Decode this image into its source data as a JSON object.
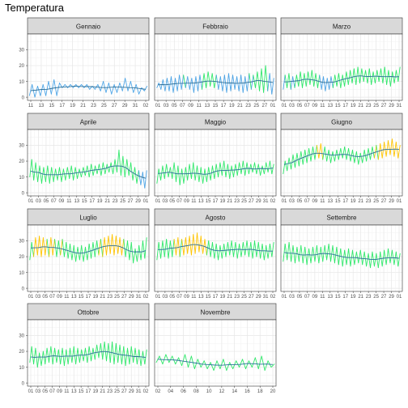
{
  "chart_data": {
    "type": "line",
    "title": "Temperatura",
    "xlabel": "",
    "ylabel": "",
    "ylim": [
      -2,
      40
    ],
    "yticks": [
      0,
      10,
      20,
      30
    ],
    "grid": true,
    "colors": {
      "line": "#3a86d4",
      "cold": "#4ea5e6",
      "mild": "#2fe86a",
      "warm": "#ffc400",
      "hot": "#e08a10",
      "smooth": "#2b6f99"
    },
    "panels": [
      {
        "month": "Gennaio",
        "xticks": [
          "11",
          "13",
          "15",
          "17",
          "19",
          "21",
          "23",
          "25",
          "27",
          "29",
          "31",
          "02"
        ],
        "days": [
          11,
          12,
          13,
          14,
          15,
          16,
          17,
          18,
          19,
          20,
          21,
          22,
          23,
          24,
          25,
          26,
          27,
          28,
          29,
          30,
          31,
          32
        ],
        "min": [
          1,
          0,
          1,
          1,
          2,
          1,
          6,
          6,
          6,
          6,
          6,
          5,
          5,
          4,
          3,
          2,
          3,
          4,
          4,
          3,
          2,
          4
        ],
        "max": [
          8,
          7,
          8,
          10,
          11,
          9,
          8,
          8,
          8,
          8,
          8,
          7,
          8,
          10,
          9,
          8,
          9,
          12,
          10,
          8,
          6,
          7
        ]
      },
      {
        "month": "Febbraio",
        "xticks": [
          "01",
          "03",
          "05",
          "07",
          "09",
          "11",
          "13",
          "15",
          "17",
          "19",
          "21",
          "23",
          "25",
          "27",
          "01"
        ],
        "days": [
          1,
          2,
          3,
          4,
          5,
          6,
          7,
          8,
          9,
          10,
          11,
          12,
          13,
          14,
          15,
          16,
          17,
          18,
          19,
          20,
          21,
          22,
          23,
          24,
          25,
          26,
          27,
          28,
          29
        ],
        "min": [
          6,
          5,
          4,
          4,
          3,
          4,
          5,
          6,
          5,
          3,
          4,
          5,
          6,
          7,
          6,
          5,
          4,
          3,
          4,
          5,
          4,
          3,
          4,
          5,
          6,
          4,
          3,
          4,
          2
        ],
        "max": [
          9,
          11,
          12,
          13,
          12,
          14,
          14,
          13,
          12,
          13,
          14,
          15,
          16,
          15,
          14,
          13,
          14,
          15,
          14,
          13,
          14,
          13,
          15,
          14,
          16,
          18,
          20,
          15,
          12
        ]
      },
      {
        "month": "Marzo",
        "xticks": [
          "01",
          "03",
          "05",
          "07",
          "09",
          "11",
          "13",
          "15",
          "17",
          "19",
          "21",
          "23",
          "25",
          "27",
          "29",
          "31"
        ],
        "days": [
          1,
          2,
          3,
          4,
          5,
          6,
          7,
          8,
          9,
          10,
          11,
          12,
          13,
          14,
          15,
          16,
          17,
          18,
          19,
          20,
          21,
          22,
          23,
          24,
          25,
          26,
          27,
          28,
          29,
          30,
          31
        ],
        "min": [
          5,
          6,
          5,
          6,
          7,
          6,
          7,
          8,
          7,
          6,
          5,
          4,
          5,
          6,
          7,
          6,
          7,
          8,
          9,
          8,
          9,
          10,
          9,
          8,
          9,
          10,
          9,
          8,
          7,
          9,
          10
        ],
        "max": [
          14,
          15,
          13,
          14,
          16,
          15,
          16,
          17,
          15,
          14,
          13,
          12,
          13,
          14,
          15,
          14,
          16,
          17,
          18,
          19,
          18,
          17,
          18,
          16,
          17,
          18,
          19,
          17,
          16,
          17,
          19
        ]
      },
      {
        "month": "Aprile",
        "xticks": [
          "01",
          "03",
          "05",
          "07",
          "09",
          "11",
          "13",
          "15",
          "17",
          "19",
          "21",
          "23",
          "25",
          "27",
          "29",
          "01"
        ],
        "days": [
          1,
          2,
          3,
          4,
          5,
          6,
          7,
          8,
          9,
          10,
          11,
          12,
          13,
          14,
          15,
          16,
          17,
          18,
          19,
          20,
          21,
          22,
          23,
          24,
          25,
          26,
          27,
          28,
          29,
          30
        ],
        "min": [
          10,
          8,
          7,
          6,
          7,
          6,
          7,
          8,
          7,
          8,
          9,
          8,
          9,
          10,
          11,
          10,
          11,
          12,
          11,
          12,
          13,
          12,
          13,
          11,
          10,
          11,
          8,
          6,
          5,
          3
        ],
        "max": [
          21,
          19,
          17,
          16,
          17,
          16,
          15,
          16,
          15,
          16,
          17,
          16,
          15,
          16,
          17,
          18,
          17,
          18,
          19,
          18,
          19,
          21,
          27,
          23,
          21,
          19,
          16,
          14,
          13,
          14
        ]
      },
      {
        "month": "Maggio",
        "xticks": [
          "01",
          "03",
          "05",
          "07",
          "09",
          "11",
          "13",
          "15",
          "17",
          "19",
          "21",
          "23",
          "25",
          "27",
          "29",
          "31",
          "02"
        ],
        "days": [
          1,
          2,
          3,
          4,
          5,
          6,
          7,
          8,
          9,
          10,
          11,
          12,
          13,
          14,
          15,
          16,
          17,
          18,
          19,
          20,
          21,
          22,
          23,
          24,
          25,
          26,
          27,
          28,
          29,
          30,
          31
        ],
        "min": [
          6,
          8,
          9,
          10,
          9,
          7,
          5,
          6,
          8,
          9,
          8,
          7,
          6,
          7,
          8,
          9,
          10,
          11,
          10,
          9,
          10,
          11,
          12,
          11,
          12,
          13,
          12,
          11,
          12,
          13,
          12
        ],
        "max": [
          15,
          17,
          18,
          16,
          19,
          17,
          15,
          16,
          18,
          19,
          17,
          16,
          15,
          16,
          17,
          18,
          19,
          20,
          18,
          17,
          18,
          19,
          20,
          19,
          18,
          19,
          18,
          17,
          19,
          20,
          18
        ]
      },
      {
        "month": "Giugno",
        "xticks": [
          "01",
          "03",
          "05",
          "07",
          "09",
          "11",
          "13",
          "15",
          "17",
          "19",
          "21",
          "23",
          "25",
          "27",
          "29",
          "01"
        ],
        "days": [
          1,
          2,
          3,
          4,
          5,
          6,
          7,
          8,
          9,
          10,
          11,
          12,
          13,
          14,
          15,
          16,
          17,
          18,
          19,
          20,
          21,
          22,
          23,
          24,
          25,
          26,
          27,
          28,
          29,
          30
        ],
        "min": [
          12,
          14,
          15,
          16,
          17,
          18,
          19,
          20,
          21,
          22,
          21,
          20,
          19,
          20,
          21,
          22,
          21,
          20,
          19,
          18,
          19,
          20,
          21,
          22,
          21,
          22,
          23,
          24,
          23,
          22
        ],
        "max": [
          20,
          22,
          24,
          25,
          26,
          27,
          28,
          29,
          30,
          31,
          29,
          27,
          26,
          27,
          28,
          29,
          28,
          27,
          26,
          25,
          27,
          28,
          29,
          30,
          31,
          32,
          33,
          34,
          32,
          30
        ]
      },
      {
        "month": "Luglio",
        "xticks": [
          "01",
          "03",
          "05",
          "07",
          "09",
          "11",
          "13",
          "15",
          "17",
          "19",
          "21",
          "23",
          "25",
          "27",
          "29",
          "31",
          "02"
        ],
        "days": [
          1,
          2,
          3,
          4,
          5,
          6,
          7,
          8,
          9,
          10,
          11,
          12,
          13,
          14,
          15,
          16,
          17,
          18,
          19,
          20,
          21,
          22,
          23,
          24,
          25,
          26,
          27,
          28,
          29,
          30,
          31
        ],
        "min": [
          18,
          20,
          21,
          20,
          21,
          20,
          21,
          20,
          21,
          20,
          19,
          18,
          17,
          18,
          17,
          18,
          19,
          20,
          21,
          20,
          21,
          22,
          21,
          22,
          21,
          20,
          18,
          16,
          17,
          18,
          19
        ],
        "max": [
          29,
          32,
          33,
          32,
          31,
          32,
          31,
          30,
          31,
          29,
          28,
          27,
          26,
          27,
          26,
          28,
          29,
          30,
          31,
          32,
          33,
          34,
          33,
          32,
          31,
          30,
          29,
          25,
          27,
          30,
          32
        ]
      },
      {
        "month": "Agosto",
        "xticks": [
          "01",
          "03",
          "05",
          "07",
          "09",
          "11",
          "13",
          "15",
          "17",
          "19",
          "21",
          "23",
          "25",
          "27",
          "29",
          "31",
          "02"
        ],
        "days": [
          1,
          2,
          3,
          4,
          5,
          6,
          7,
          8,
          9,
          10,
          11,
          12,
          13,
          14,
          15,
          16,
          17,
          18,
          19,
          20,
          21,
          22,
          23,
          24,
          25,
          26,
          27,
          28,
          29,
          30,
          31
        ],
        "min": [
          18,
          19,
          20,
          19,
          20,
          21,
          20,
          21,
          22,
          21,
          22,
          23,
          22,
          21,
          20,
          19,
          18,
          19,
          20,
          21,
          20,
          19,
          20,
          21,
          20,
          19,
          20,
          19,
          18,
          19,
          20
        ],
        "max": [
          29,
          30,
          31,
          30,
          31,
          32,
          31,
          32,
          33,
          34,
          35,
          33,
          31,
          30,
          29,
          28,
          27,
          28,
          29,
          30,
          29,
          28,
          29,
          30,
          29,
          30,
          29,
          28,
          27,
          28,
          29
        ]
      },
      {
        "month": "Settembre",
        "xticks": [
          "01",
          "03",
          "05",
          "07",
          "09",
          "11",
          "13",
          "15",
          "17",
          "19",
          "21",
          "23",
          "25",
          "27",
          "29",
          "01"
        ],
        "days": [
          1,
          2,
          3,
          4,
          5,
          6,
          7,
          8,
          9,
          10,
          11,
          12,
          13,
          14,
          15,
          16,
          17,
          18,
          19,
          20,
          21,
          22,
          23,
          24,
          25,
          26,
          27,
          28,
          29,
          30
        ],
        "min": [
          17,
          18,
          17,
          16,
          17,
          16,
          15,
          16,
          17,
          16,
          17,
          18,
          17,
          16,
          15,
          14,
          15,
          14,
          15,
          16,
          15,
          14,
          13,
          14,
          13,
          14,
          15,
          16,
          15,
          14
        ],
        "max": [
          28,
          29,
          27,
          26,
          27,
          26,
          25,
          26,
          27,
          26,
          27,
          28,
          27,
          26,
          25,
          24,
          25,
          24,
          23,
          24,
          23,
          22,
          23,
          22,
          23,
          24,
          25,
          24,
          23,
          22
        ]
      },
      {
        "month": "Ottobre",
        "xticks": [
          "01",
          "03",
          "05",
          "07",
          "09",
          "11",
          "13",
          "15",
          "17",
          "19",
          "21",
          "23",
          "25",
          "27",
          "29",
          "31",
          "02"
        ],
        "days": [
          1,
          2,
          3,
          4,
          5,
          6,
          7,
          8,
          9,
          10,
          11,
          12,
          13,
          14,
          15,
          16,
          17,
          18,
          19,
          20,
          21,
          22,
          23,
          24,
          25,
          26,
          27,
          28,
          29,
          30,
          31
        ],
        "min": [
          13,
          12,
          10,
          11,
          12,
          13,
          12,
          13,
          12,
          11,
          12,
          13,
          12,
          13,
          14,
          13,
          14,
          15,
          16,
          15,
          14,
          13,
          12,
          13,
          12,
          11,
          12,
          13,
          12,
          11,
          12
        ],
        "max": [
          23,
          22,
          19,
          20,
          22,
          23,
          22,
          21,
          22,
          21,
          22,
          23,
          22,
          21,
          22,
          23,
          22,
          24,
          25,
          26,
          25,
          26,
          25,
          24,
          23,
          22,
          23,
          22,
          21,
          20,
          21
        ]
      },
      {
        "month": "Novembre",
        "xticks": [
          "02",
          "04",
          "06",
          "08",
          "10",
          "12",
          "14",
          "16",
          "18",
          "20"
        ],
        "days": [
          1,
          2,
          3,
          4,
          5,
          6,
          7,
          8,
          9,
          10,
          11,
          12,
          13,
          14,
          15,
          16,
          17,
          18,
          19
        ],
        "min": [
          13,
          12,
          13,
          12,
          11,
          10,
          9,
          10,
          9,
          8,
          9,
          8,
          9,
          10,
          9,
          10,
          9,
          8,
          10
        ],
        "max": [
          17,
          18,
          17,
          16,
          18,
          17,
          15,
          14,
          13,
          14,
          15,
          13,
          14,
          15,
          14,
          16,
          17,
          14,
          12
        ]
      }
    ]
  }
}
